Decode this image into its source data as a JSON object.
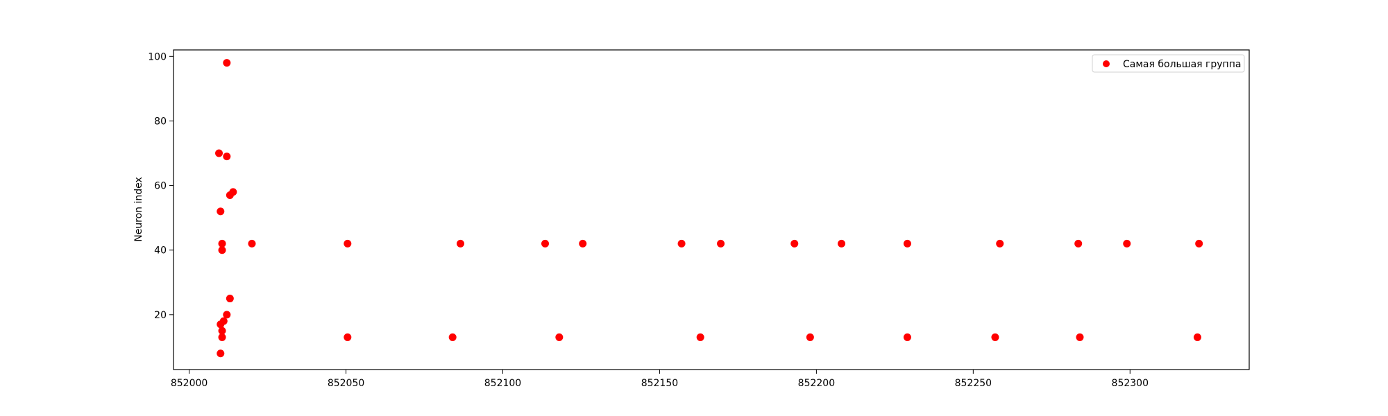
{
  "chart_data": {
    "type": "scatter",
    "title": "",
    "xlabel": "",
    "ylabel": "Neuron index",
    "xlim": [
      851995,
      852338
    ],
    "ylim": [
      3,
      102
    ],
    "xticks": [
      852000,
      852050,
      852100,
      852150,
      852200,
      852250,
      852300
    ],
    "yticks": [
      20,
      40,
      60,
      80,
      100
    ],
    "grid": false,
    "legend_position": "top-right",
    "series": [
      {
        "name": "Самая большая группа",
        "color": "#ff0000",
        "points": [
          {
            "x": 852012,
            "y": 98
          },
          {
            "x": 852009.5,
            "y": 70
          },
          {
            "x": 852012,
            "y": 69
          },
          {
            "x": 852014,
            "y": 58
          },
          {
            "x": 852013,
            "y": 57
          },
          {
            "x": 852010,
            "y": 52
          },
          {
            "x": 852010.5,
            "y": 42
          },
          {
            "x": 852010.5,
            "y": 40
          },
          {
            "x": 852013,
            "y": 25
          },
          {
            "x": 852012,
            "y": 20
          },
          {
            "x": 852011,
            "y": 18
          },
          {
            "x": 852010,
            "y": 17
          },
          {
            "x": 852010.5,
            "y": 15
          },
          {
            "x": 852010.5,
            "y": 13
          },
          {
            "x": 852010,
            "y": 8
          },
          {
            "x": 852020,
            "y": 42
          },
          {
            "x": 852050.5,
            "y": 42
          },
          {
            "x": 852086.5,
            "y": 42
          },
          {
            "x": 852113.5,
            "y": 42
          },
          {
            "x": 852125.5,
            "y": 42
          },
          {
            "x": 852157,
            "y": 42
          },
          {
            "x": 852169.5,
            "y": 42
          },
          {
            "x": 852193,
            "y": 42
          },
          {
            "x": 852208,
            "y": 42
          },
          {
            "x": 852229,
            "y": 42
          },
          {
            "x": 852258.5,
            "y": 42
          },
          {
            "x": 852283.5,
            "y": 42
          },
          {
            "x": 852299,
            "y": 42
          },
          {
            "x": 852322,
            "y": 42
          },
          {
            "x": 852050.5,
            "y": 13
          },
          {
            "x": 852084,
            "y": 13
          },
          {
            "x": 852118,
            "y": 13
          },
          {
            "x": 852163,
            "y": 13
          },
          {
            "x": 852198,
            "y": 13
          },
          {
            "x": 852229,
            "y": 13
          },
          {
            "x": 852257,
            "y": 13
          },
          {
            "x": 852284,
            "y": 13
          },
          {
            "x": 852321.5,
            "y": 13
          }
        ]
      }
    ]
  }
}
